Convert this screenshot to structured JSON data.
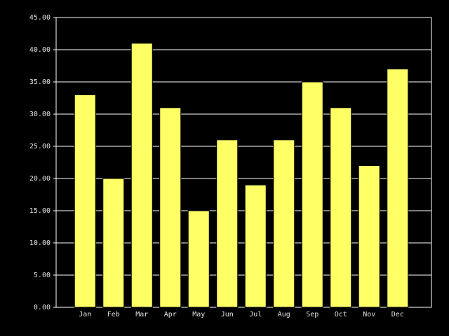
{
  "chart_data": {
    "type": "bar",
    "categories": [
      "Jan",
      "Feb",
      "Mar",
      "Apr",
      "May",
      "Jun",
      "Jul",
      "Aug",
      "Sep",
      "Oct",
      "Nov",
      "Dec"
    ],
    "values": [
      33,
      20,
      41,
      31,
      15,
      26,
      19,
      26,
      35,
      31,
      22,
      37
    ],
    "color": "#ffff66",
    "ylim": [
      0,
      45
    ],
    "yticks": [
      {
        "value": 0,
        "label": "0.00"
      },
      {
        "value": 5,
        "label": "5.00"
      },
      {
        "value": 10,
        "label": "10.00"
      },
      {
        "value": 15,
        "label": "15.00"
      },
      {
        "value": 20,
        "label": "20.00"
      },
      {
        "value": 25,
        "label": "25.00"
      },
      {
        "value": 30,
        "label": "30.00"
      },
      {
        "value": 35,
        "label": "35.00"
      },
      {
        "value": 40,
        "label": "40.00"
      },
      {
        "value": 45,
        "label": "45.00"
      }
    ],
    "grid": true
  }
}
